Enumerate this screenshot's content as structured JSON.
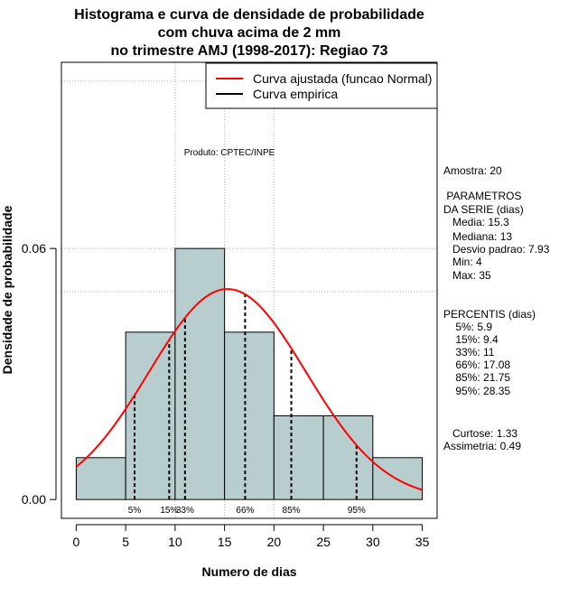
{
  "chart_data": {
    "type": "bar",
    "title": [
      "Histograma e curva de densidade de probabilidade",
      "com chuva acima de 2 mm",
      "no trimestre AMJ (1998-2017): Regiao 73"
    ],
    "xlabel": "Numero de dias",
    "ylabel": "Densidade de probabilidade",
    "xlim": [
      -1.5,
      36.5
    ],
    "ylim": [
      -0.0045,
      0.1045
    ],
    "x_ticks": [
      0,
      5,
      10,
      15,
      20,
      25,
      30,
      35
    ],
    "x_tick_labels": [
      "0",
      "5",
      "10",
      "15",
      "20",
      "25",
      "30",
      "35"
    ],
    "y_ticks": [
      0.0,
      0.06
    ],
    "y_tick_labels": [
      "0.00",
      "0.06"
    ],
    "gridlines_y": [
      0.06,
      0.1,
      0.0497
    ],
    "gridlines_x": [
      10,
      15,
      20
    ],
    "bins": [
      {
        "start": 0,
        "end": 5,
        "density": 0.01
      },
      {
        "start": 5,
        "end": 10,
        "density": 0.04
      },
      {
        "start": 10,
        "end": 15,
        "density": 0.06
      },
      {
        "start": 15,
        "end": 20,
        "density": 0.04
      },
      {
        "start": 20,
        "end": 25,
        "density": 0.02
      },
      {
        "start": 25,
        "end": 30,
        "density": 0.02
      },
      {
        "start": 30,
        "end": 35,
        "density": 0.01
      }
    ],
    "bar_color": "#b8cece",
    "normal_curve": {
      "mean": 15.3,
      "sd": 7.93,
      "color": "#ff0000",
      "from": 0,
      "to": 35
    },
    "percentiles": [
      {
        "label": "5%",
        "value": 5.9
      },
      {
        "label": "15%",
        "value": 9.4
      },
      {
        "label": "33%",
        "value": 11
      },
      {
        "label": "66%",
        "value": 17.08
      },
      {
        "label": "85%",
        "value": 21.75
      },
      {
        "label": "95%",
        "value": 28.35
      }
    ],
    "legend": {
      "position": "top-right",
      "entries": [
        {
          "label": "Curva ajustada (funcao Normal)",
          "color": "#ff0000"
        },
        {
          "label": "Curva empirica",
          "color": "#000000"
        }
      ]
    },
    "annotation": "Produto: CPTEC/INPE"
  },
  "stats_panel": {
    "lines": [
      "Amostra: 20",
      " PARAMETROS",
      "DA SERIE (dias)",
      "   Media: 15.3",
      "   Mediana: 13",
      "   Desvio padrao: 7.93",
      "   Min: 4",
      "   Max: 35",
      "PERCENTIS (dias)",
      "    5%: 5.9",
      "    15%: 9.4",
      "    33%: 11",
      "    66%: 17.08",
      "    85%: 21.75",
      "    95%: 28.35",
      "   Curtose: 1.33",
      "Assimetria: 0.49"
    ]
  }
}
